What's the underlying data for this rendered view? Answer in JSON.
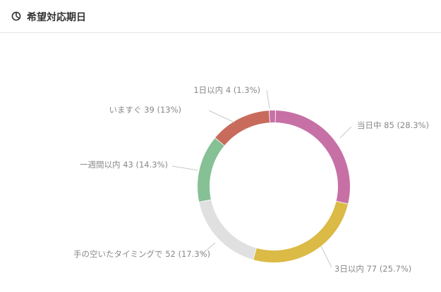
{
  "panel": {
    "title": "希望対応期日",
    "icon": "pie-chart-icon"
  },
  "chart_data": {
    "type": "pie",
    "donut": true,
    "title": "希望対応期日",
    "slices": [
      {
        "name": "1日以内",
        "value": 4,
        "percent": 1.3,
        "color": "#c770a6",
        "label": "1日以内 4 (1.3%)"
      },
      {
        "name": "当日中",
        "value": 85,
        "percent": 28.3,
        "color": "#c770a6",
        "label": "当日中 85 (28.3%)"
      },
      {
        "name": "3日以内",
        "value": 77,
        "percent": 25.7,
        "color": "#dbba45",
        "label": "3日以内 77 (25.7%)"
      },
      {
        "name": "手の空いたタイミングで",
        "value": 52,
        "percent": 17.3,
        "color": "#e0e0e0",
        "label": "手の空いたタイミングで 52 (17.3%)"
      },
      {
        "name": "一週間以内",
        "value": 43,
        "percent": 14.3,
        "color": "#86c095",
        "label": "一週間以内 43 (14.3%)"
      },
      {
        "name": "いますぐ",
        "value": 39,
        "percent": 13,
        "color": "#c86b5c",
        "label": "いますぐ 39 (13%)"
      }
    ]
  }
}
